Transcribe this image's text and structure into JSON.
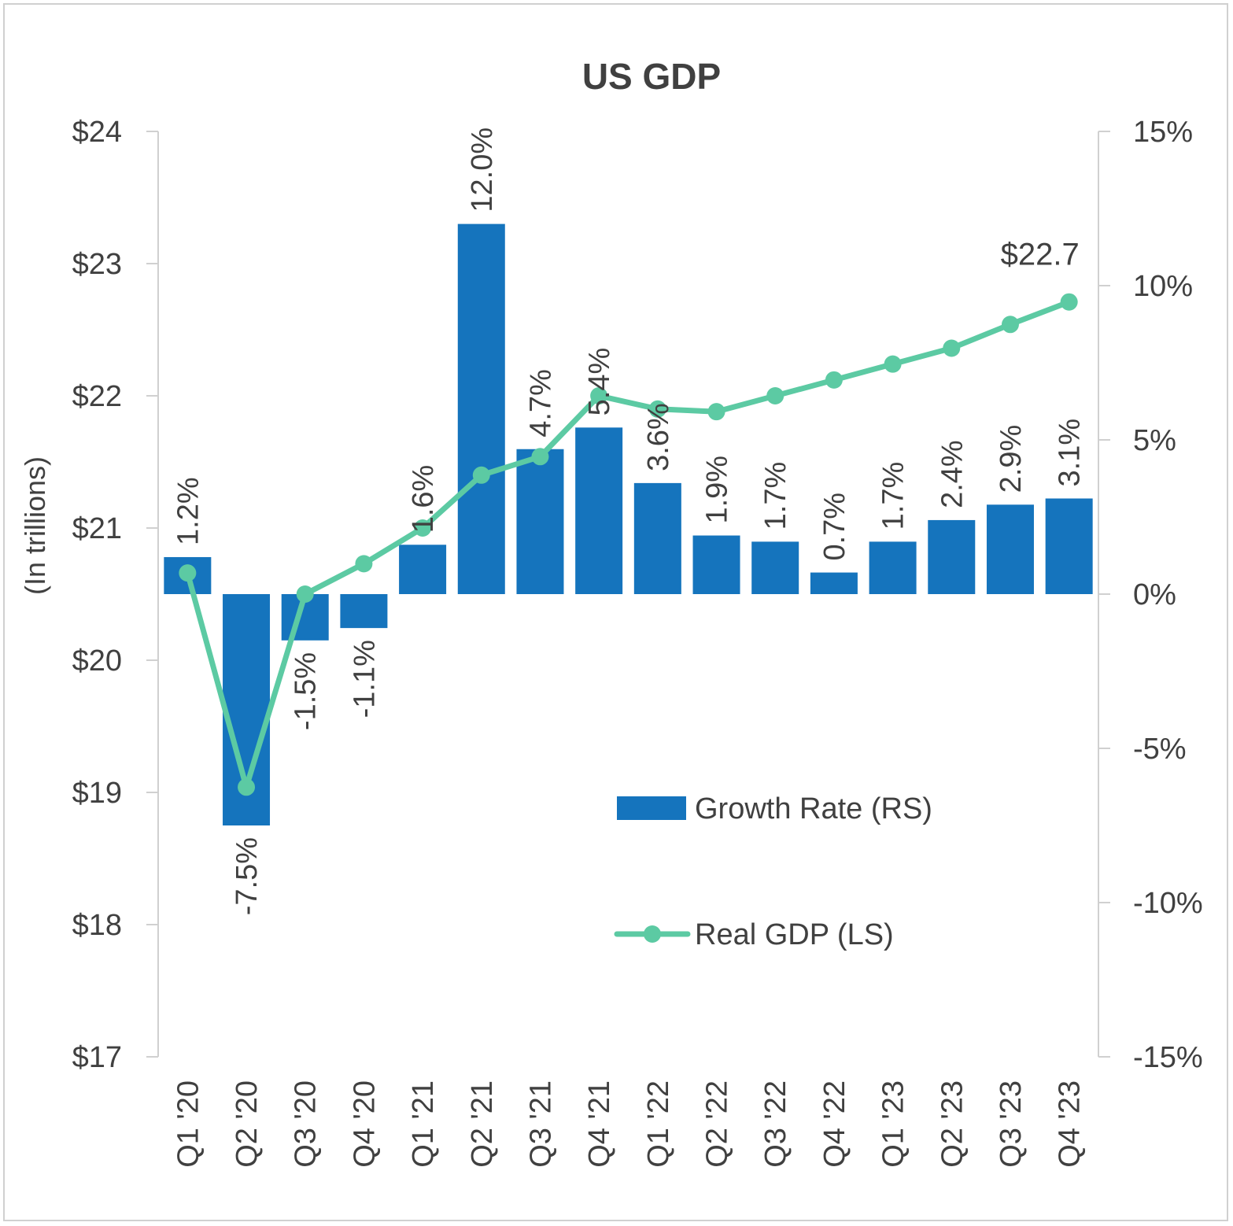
{
  "chart_data": {
    "type": "bar",
    "title": "US GDP",
    "ylabel": "(In trillions)",
    "categories": [
      "Q1 '20",
      "Q2 '20",
      "Q3 '20",
      "Q4 '20",
      "Q1 '21",
      "Q2 '21",
      "Q3 '21",
      "Q4 '21",
      "Q1 '22",
      "Q2 '22",
      "Q3 '22",
      "Q4 '22",
      "Q1 '23",
      "Q2 '23",
      "Q3 '23",
      "Q4 '23"
    ],
    "left_axis": {
      "ticks": [
        "$24",
        "$23",
        "$22",
        "$21",
        "$20",
        "$19",
        "$18",
        "$17"
      ],
      "ylim": [
        17,
        24
      ]
    },
    "right_axis": {
      "ticks": [
        "15%",
        "10%",
        "5%",
        "0%",
        "-5%",
        "-10%",
        "-15%"
      ],
      "ylim": [
        -15,
        15
      ]
    },
    "series": [
      {
        "name": "Growth Rate (RS)",
        "type": "bar",
        "axis": "right",
        "color": "#1574bd",
        "values": [
          1.2,
          -7.5,
          -1.5,
          -1.1,
          1.6,
          12.0,
          4.7,
          5.4,
          3.6,
          1.9,
          1.7,
          0.7,
          1.7,
          2.4,
          2.9,
          3.1
        ],
        "labels": [
          "1.2%",
          "-7.5%",
          "-1.5%",
          "-1.1%",
          "1.6%",
          "12.0%",
          "4.7%",
          "5.4%",
          "3.6%",
          "1.9%",
          "1.7%",
          "0.7%",
          "1.7%",
          "2.4%",
          "2.9%",
          "3.1%"
        ]
      },
      {
        "name": "Real GDP (LS)",
        "type": "line",
        "axis": "left",
        "color": "#5ccaa3",
        "values": [
          20.66,
          19.04,
          20.5,
          20.73,
          21.0,
          21.4,
          21.54,
          22.0,
          21.9,
          21.88,
          22.0,
          22.12,
          22.24,
          22.36,
          22.54,
          22.71
        ],
        "end_label": "$22.7"
      }
    ],
    "legend_position": "bottom-right",
    "grid": false
  }
}
